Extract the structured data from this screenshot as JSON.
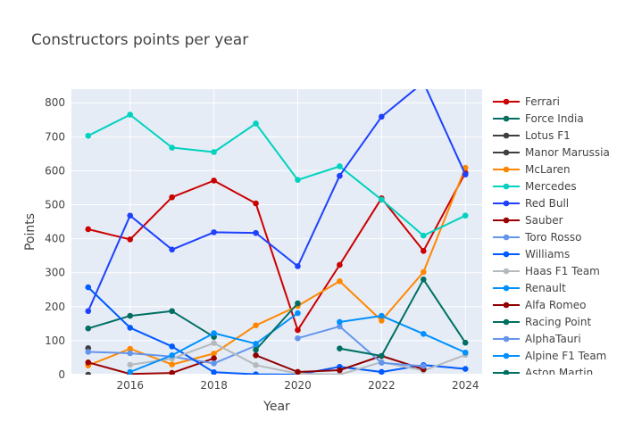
{
  "chart_data": {
    "type": "line",
    "title": "Constructors points per year",
    "xlabel": "Year",
    "ylabel": "Points",
    "xlim": [
      2014.6,
      2024.4
    ],
    "ylim": [
      0,
      840
    ],
    "xticks": [
      2016,
      2018,
      2020,
      2022,
      2024
    ],
    "yticks": [
      0,
      100,
      200,
      300,
      400,
      500,
      600,
      700,
      800
    ],
    "grid": true,
    "legend_position": "right",
    "background": "#E5ECF6",
    "series": [
      {
        "name": "Ferrari",
        "color": "#CC0000",
        "x": [
          2015,
          2016,
          2017,
          2018,
          2019,
          2020,
          2021,
          2022,
          2023,
          2024
        ],
        "y": [
          428,
          398,
          522,
          571,
          504,
          131,
          323,
          519,
          364,
          594
        ]
      },
      {
        "name": "Force India",
        "color": "#006F62",
        "x": [
          2015,
          2016,
          2017,
          2018
        ],
        "y": [
          136,
          173,
          187,
          111
        ]
      },
      {
        "name": "Lotus F1",
        "color": "#3F3F3F",
        "x": [
          2015
        ],
        "y": [
          78
        ]
      },
      {
        "name": "Manor Marussia",
        "color": "#3F3F3F",
        "x": [
          2015
        ],
        "y": [
          0
        ]
      },
      {
        "name": "McLaren",
        "color": "#FF8700",
        "x": [
          2015,
          2016,
          2017,
          2018,
          2019,
          2020,
          2021,
          2022,
          2023,
          2024
        ],
        "y": [
          27,
          76,
          30,
          62,
          145,
          202,
          275,
          159,
          302,
          609
        ]
      },
      {
        "name": "Mercedes",
        "color": "#00D2BE",
        "x": [
          2015,
          2016,
          2017,
          2018,
          2019,
          2020,
          2021,
          2022,
          2023,
          2024
        ],
        "y": [
          703,
          765,
          668,
          655,
          739,
          573,
          613,
          515,
          409,
          468
        ]
      },
      {
        "name": "Red Bull",
        "color": "#1E41FF",
        "x": [
          2015,
          2016,
          2017,
          2018,
          2019,
          2020,
          2021,
          2022,
          2023,
          2024
        ],
        "y": [
          187,
          468,
          368,
          419,
          417,
          319,
          585,
          759,
          860,
          589
        ]
      },
      {
        "name": "Sauber",
        "color": "#9B0000",
        "x": [
          2015,
          2016,
          2017,
          2018
        ],
        "y": [
          36,
          2,
          5,
          48
        ]
      },
      {
        "name": "Toro Rosso",
        "color": "#6495ED",
        "x": [
          2015,
          2016,
          2017,
          2018,
          2019
        ],
        "y": [
          67,
          63,
          53,
          33,
          85
        ]
      },
      {
        "name": "Williams",
        "color": "#005AFF",
        "x": [
          2015,
          2016,
          2017,
          2018,
          2019,
          2020,
          2021,
          2022,
          2023,
          2024
        ],
        "y": [
          257,
          138,
          83,
          7,
          1,
          0,
          23,
          8,
          28,
          17
        ]
      },
      {
        "name": "Haas F1 Team",
        "color": "#B6BABD",
        "x": [
          2016,
          2017,
          2018,
          2019,
          2020,
          2021,
          2022,
          2023,
          2024
        ],
        "y": [
          29,
          47,
          93,
          28,
          3,
          0,
          37,
          12,
          58
        ]
      },
      {
        "name": "Renault",
        "color": "#0090FF",
        "x": [
          2016,
          2017,
          2018,
          2019,
          2020
        ],
        "y": [
          8,
          57,
          122,
          91,
          181
        ]
      },
      {
        "name": "Alfa Romeo",
        "color": "#900000",
        "x": [
          2019,
          2020,
          2021,
          2022,
          2023
        ],
        "y": [
          57,
          8,
          13,
          55,
          16
        ]
      },
      {
        "name": "Racing Point",
        "color": "#006F62",
        "x": [
          2019,
          2020
        ],
        "y": [
          73,
          210
        ]
      },
      {
        "name": "AlphaTauri",
        "color": "#6495ED",
        "x": [
          2020,
          2021,
          2022,
          2023
        ],
        "y": [
          107,
          142,
          35,
          25
        ]
      },
      {
        "name": "Alpine F1 Team",
        "color": "#0090FF",
        "x": [
          2021,
          2022,
          2023,
          2024
        ],
        "y": [
          155,
          173,
          120,
          65
        ]
      },
      {
        "name": "Aston Martin",
        "color": "#006F62",
        "x": [
          2021,
          2022,
          2023,
          2024
        ],
        "y": [
          77,
          55,
          280,
          94
        ]
      }
    ]
  }
}
